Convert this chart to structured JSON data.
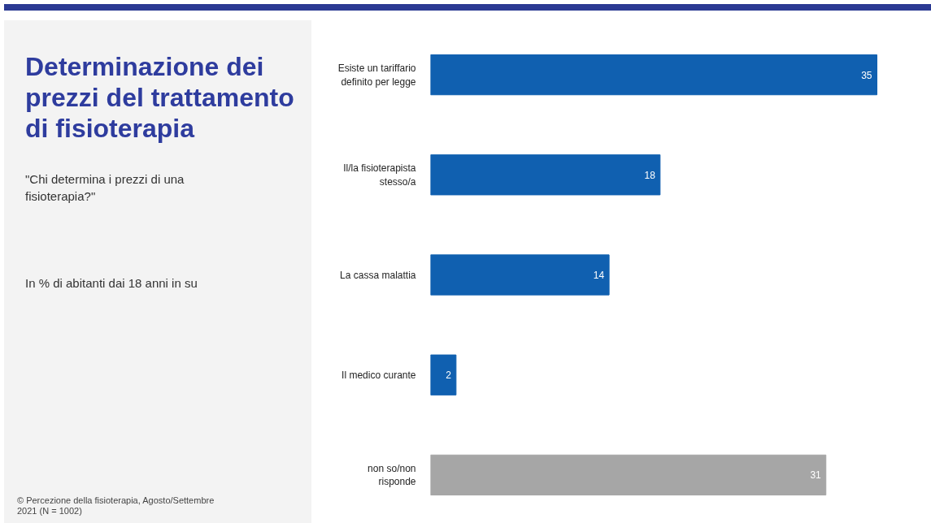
{
  "chart_data": {
    "type": "bar",
    "orientation": "horizontal",
    "data_labels": true,
    "grid": false,
    "title": "Determinazione dei prezzi del trattamento di fisioterapia",
    "subtitle": "\"Chi determina i prezzi di una fisioterapia?\"",
    "annotations": [
      "In % di abitanti dai 18 anni in su",
      "© Percezione della fisioterapia, Agosto/Settembre 2021 (N = 1002)"
    ],
    "categories": [
      "Esiste un tariffario\ndefinito per legge",
      "Il/la fisioterapista\nstesso/a",
      "La cassa malattia",
      "Il medico curante",
      "non so/non\nrisponde"
    ],
    "values": [
      35,
      18,
      14,
      2,
      31
    ],
    "colors": [
      "#1060b0",
      "#1060b0",
      "#1060b0",
      "#1060b0",
      "#a6a6a6"
    ]
  }
}
